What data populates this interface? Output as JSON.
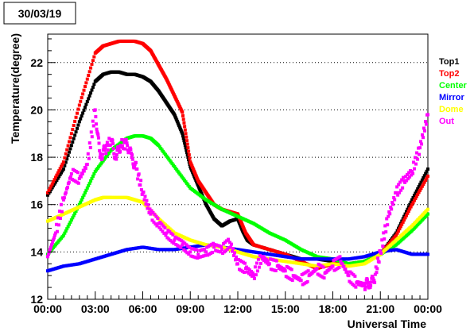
{
  "chart_data": {
    "type": "scatter",
    "title": "30/03/19",
    "xlabel": "Universal Time",
    "ylabel": "Temperature(degree)",
    "xlim": [
      0,
      24
    ],
    "ylim": [
      12,
      23.2
    ],
    "x_ticks": [
      {
        "value": 0,
        "label": "00:00"
      },
      {
        "value": 3,
        "label": "03:00"
      },
      {
        "value": 6,
        "label": "06:00"
      },
      {
        "value": 9,
        "label": "09:00"
      },
      {
        "value": 12,
        "label": "12:00"
      },
      {
        "value": 15,
        "label": "15:00"
      },
      {
        "value": 18,
        "label": "18:00"
      },
      {
        "value": 21,
        "label": "21:00"
      },
      {
        "value": 24,
        "label": "00:00"
      }
    ],
    "y_ticks": [
      {
        "value": 12,
        "label": "12"
      },
      {
        "value": 14,
        "label": "14"
      },
      {
        "value": 16,
        "label": "16"
      },
      {
        "value": 18,
        "label": "18"
      },
      {
        "value": 20,
        "label": "20"
      },
      {
        "value": 22,
        "label": "22"
      }
    ],
    "grid": {
      "horizontal": "dotted",
      "vertical": "none"
    },
    "legend_position": "right",
    "series": [
      {
        "name": "Top1",
        "color": "#000000",
        "x": [
          0,
          1,
          2,
          3,
          3.5,
          4,
          4.5,
          5,
          5.5,
          6,
          6.5,
          7,
          7.5,
          8,
          8.5,
          9,
          9.5,
          10,
          10.5,
          11,
          11.5,
          12,
          12.3,
          12.6,
          13,
          14,
          15,
          16,
          17,
          18,
          19,
          20,
          21,
          22,
          23,
          24
        ],
        "y": [
          16.4,
          17.5,
          19.5,
          21.2,
          21.5,
          21.6,
          21.6,
          21.5,
          21.5,
          21.4,
          21.2,
          20.8,
          20.3,
          19.8,
          19.0,
          17.6,
          16.8,
          16.0,
          15.4,
          15.1,
          15.3,
          15.4,
          14.9,
          14.5,
          14.3,
          14.1,
          13.9,
          13.7,
          13.7,
          13.6,
          13.5,
          13.6,
          13.9,
          14.8,
          16.2,
          17.5
        ]
      },
      {
        "name": "Top2",
        "color": "#ff0000",
        "x": [
          0,
          1,
          2,
          3,
          3.5,
          4,
          4.5,
          5,
          5.5,
          6,
          6.5,
          7,
          7.5,
          8,
          8.5,
          9,
          9.5,
          10,
          10.5,
          11,
          11.5,
          12,
          12.5,
          13,
          14,
          15,
          16,
          17,
          18,
          19,
          20,
          21,
          22,
          23,
          24
        ],
        "y": [
          16.5,
          17.8,
          20.2,
          22.4,
          22.7,
          22.8,
          22.9,
          22.9,
          22.9,
          22.8,
          22.5,
          21.9,
          21.3,
          20.6,
          19.9,
          17.8,
          17.0,
          16.5,
          16.0,
          15.8,
          15.7,
          15.6,
          14.8,
          14.3,
          14.1,
          13.9,
          13.6,
          13.3,
          13.5,
          13.5,
          13.6,
          13.9,
          14.7,
          16.0,
          17.2
        ]
      },
      {
        "name": "Center",
        "color": "#00ff00",
        "x": [
          0,
          1,
          2,
          3,
          4,
          5,
          5.5,
          6,
          6.5,
          7,
          8,
          9,
          10,
          11,
          12,
          13,
          14,
          15,
          16,
          17,
          18,
          19,
          20,
          21,
          22,
          23,
          24
        ],
        "y": [
          13.9,
          14.7,
          16.0,
          17.4,
          18.3,
          18.8,
          18.9,
          18.9,
          18.8,
          18.5,
          17.6,
          16.7,
          16.2,
          15.8,
          15.5,
          15.2,
          14.8,
          14.5,
          14.1,
          13.8,
          13.7,
          13.5,
          13.6,
          13.9,
          14.3,
          14.9,
          15.6
        ]
      },
      {
        "name": "Mirror",
        "color": "#0000ff",
        "x": [
          0,
          1,
          2,
          3,
          4,
          5,
          6,
          7,
          8,
          9,
          10,
          11,
          12,
          13,
          14,
          15,
          16,
          17,
          18,
          19,
          20,
          21,
          22,
          23,
          24
        ],
        "y": [
          13.2,
          13.4,
          13.5,
          13.7,
          13.9,
          14.1,
          14.2,
          14.1,
          14.1,
          14.2,
          14.3,
          14.2,
          14.1,
          14.0,
          13.9,
          13.8,
          13.7,
          13.7,
          13.7,
          13.7,
          13.8,
          14.0,
          14.1,
          13.9,
          13.9
        ]
      },
      {
        "name": "Dome",
        "color": "#ffff00",
        "x": [
          0,
          1,
          2,
          3,
          3.5,
          4,
          5,
          5.5,
          6,
          7,
          8,
          9,
          10,
          11,
          12,
          13,
          14,
          15,
          16,
          17,
          18,
          19,
          20,
          21,
          22,
          23,
          24
        ],
        "y": [
          15.3,
          15.6,
          15.9,
          16.2,
          16.3,
          16.3,
          16.3,
          16.2,
          16.1,
          15.4,
          14.8,
          14.5,
          14.3,
          14.2,
          14.0,
          13.8,
          13.7,
          13.6,
          13.5,
          13.4,
          13.5,
          13.4,
          13.5,
          13.9,
          14.5,
          15.1,
          15.8
        ]
      },
      {
        "name": "Out",
        "color": "#ff00ff",
        "x": [
          0,
          0.5,
          1,
          1.5,
          2,
          2.5,
          3,
          3.3,
          3.6,
          4,
          4.3,
          4.6,
          5,
          5.3,
          5.6,
          6,
          6.5,
          7,
          7.5,
          8,
          8.5,
          9,
          9.5,
          10,
          10.5,
          11,
          11.5,
          12,
          12.5,
          13,
          13.5,
          14,
          14.5,
          15,
          15.5,
          16,
          16.5,
          17,
          17.5,
          18,
          18.5,
          19,
          19.5,
          20,
          20.3,
          20.6,
          21,
          21.5,
          22,
          22.5,
          23,
          23.5,
          24
        ],
        "y": [
          13.8,
          14.8,
          16.2,
          17.3,
          17.1,
          17.7,
          20.0,
          18.0,
          18.3,
          18.7,
          18.0,
          18.5,
          18.6,
          18.0,
          17.5,
          16.5,
          15.6,
          15.2,
          14.8,
          14.5,
          14.3,
          14.0,
          13.9,
          14.0,
          14.2,
          14.1,
          14.4,
          13.5,
          13.3,
          13.0,
          13.8,
          13.5,
          13.4,
          13.2,
          13.0,
          12.8,
          13.0,
          13.3,
          13.1,
          13.4,
          13.6,
          13.0,
          12.7,
          12.6,
          12.7,
          12.8,
          14.0,
          15.5,
          16.5,
          17.0,
          17.4,
          18.4,
          19.8
        ]
      }
    ]
  }
}
